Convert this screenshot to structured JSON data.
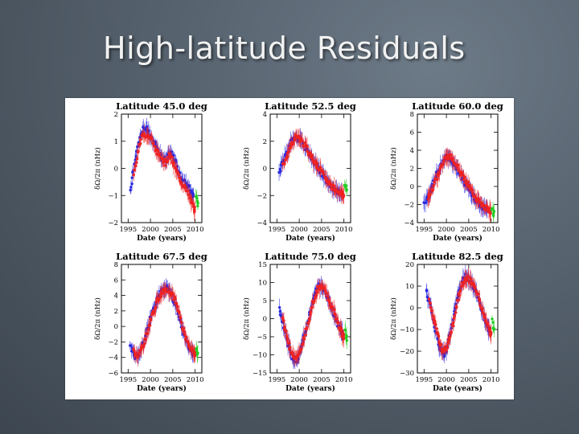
{
  "slide": {
    "title": "High-latitude Residuals"
  },
  "colors": {
    "series_blue": "#2a2ae0",
    "series_red": "#ee2222",
    "series_green": "#22cc22",
    "axis": "#000000"
  },
  "chart_data": [
    {
      "type": "scatter",
      "title": "Latitude   45.0 deg",
      "xlabel": "Date (years)",
      "ylabel": "δΩ/2π (nHz)",
      "xlim": [
        1993.5,
        2011.5
      ],
      "ylim": [
        -2,
        2
      ],
      "xticks": [
        1995,
        2000,
        2005,
        2010
      ],
      "yticks": [
        -2,
        -1,
        0,
        1,
        2
      ],
      "yticklabels": [
        "−2",
        "−1",
        "0",
        "1",
        "2"
      ],
      "grid": false,
      "series": [
        {
          "color": "blue",
          "x": [
            1995.5,
            1996.5,
            1997.5,
            1998.5,
            1999.5,
            2000.5,
            2001.5,
            2002.5,
            2003.5,
            2004.5,
            2005.5,
            2006.5,
            2007.5,
            2008.5,
            2009.5
          ],
          "y": [
            -0.8,
            0.3,
            1.0,
            1.5,
            1.4,
            1.0,
            0.8,
            0.4,
            0.3,
            0.6,
            0.3,
            -0.2,
            -0.5,
            -0.7,
            -1.0
          ]
        },
        {
          "color": "red",
          "x": [
            1996.3,
            1997.3,
            1998.3,
            1999.3,
            2000.3,
            2001.3,
            2002.3,
            2003.3,
            2004.3,
            2005.3,
            2006.3,
            2007.3,
            2008.3,
            2009.3,
            2009.9
          ],
          "y": [
            -0.2,
            0.7,
            1.3,
            1.2,
            1.1,
            0.6,
            0.5,
            0.2,
            0.5,
            0.1,
            -0.3,
            -0.6,
            -0.9,
            -1.3,
            -1.5
          ]
        },
        {
          "color": "green",
          "x": [
            2010.2,
            2010.6
          ],
          "y": [
            -1.0,
            -1.3
          ]
        }
      ]
    },
    {
      "type": "scatter",
      "title": "Latitude   52.5 deg",
      "xlabel": "Date (years)",
      "ylabel": "δΩ/2π (nHz)",
      "xlim": [
        1993.5,
        2011.5
      ],
      "ylim": [
        -4,
        4
      ],
      "xticks": [
        1995,
        2000,
        2005,
        2010
      ],
      "yticks": [
        -4,
        -2,
        0,
        2,
        4
      ],
      "yticklabels": [
        "−4",
        "−2",
        "0",
        "2",
        "4"
      ],
      "grid": false,
      "series": [
        {
          "color": "blue",
          "x": [
            1995.5,
            1996.5,
            1997.5,
            1998.5,
            1999.5,
            2000.5,
            2001.5,
            2002.5,
            2003.5,
            2004.5,
            2005.5,
            2006.5,
            2007.5,
            2008.5,
            2009.5
          ],
          "y": [
            -0.3,
            0.6,
            1.4,
            2.1,
            2.3,
            2.0,
            1.5,
            0.9,
            0.4,
            -0.1,
            -0.6,
            -1.1,
            -1.4,
            -1.7,
            -1.9
          ]
        },
        {
          "color": "red",
          "x": [
            1996.3,
            1997.3,
            1998.3,
            1999.3,
            2000.3,
            2001.3,
            2002.3,
            2003.3,
            2004.3,
            2005.3,
            2006.3,
            2007.3,
            2008.3,
            2009.3,
            2009.9
          ],
          "y": [
            0.2,
            1.0,
            1.8,
            2.4,
            2.1,
            1.7,
            1.1,
            0.6,
            0.1,
            -0.4,
            -0.9,
            -1.3,
            -1.6,
            -1.8,
            -2.0
          ]
        },
        {
          "color": "green",
          "x": [
            2010.2,
            2010.6
          ],
          "y": [
            -1.2,
            -1.6
          ]
        }
      ]
    },
    {
      "type": "scatter",
      "title": "Latitude   60.0 deg",
      "xlabel": "Date (years)",
      "ylabel": "δΩ/2π (nHz)",
      "xlim": [
        1993.5,
        2011.5
      ],
      "ylim": [
        -4,
        8
      ],
      "xticks": [
        1995,
        2000,
        2005,
        2010
      ],
      "yticks": [
        -4,
        -2,
        0,
        2,
        4,
        6,
        8
      ],
      "yticklabels": [
        "−4",
        "−2",
        "0",
        "2",
        "4",
        "6",
        "8"
      ],
      "grid": false,
      "series": [
        {
          "color": "blue",
          "x": [
            1995.0,
            1996.0,
            1997.0,
            1998.0,
            1999.0,
            2000.0,
            2001.0,
            2002.0,
            2003.0,
            2004.0,
            2005.0,
            2006.0,
            2007.0,
            2008.0,
            2009.0
          ],
          "y": [
            -1.8,
            -1.0,
            0.2,
            1.5,
            2.6,
            3.3,
            3.0,
            2.3,
            1.4,
            0.6,
            -0.3,
            -1.1,
            -1.8,
            -2.2,
            -2.5
          ]
        },
        {
          "color": "red",
          "x": [
            1995.8,
            1996.8,
            1997.8,
            1998.8,
            1999.8,
            2000.8,
            2001.8,
            2002.8,
            2003.8,
            2004.8,
            2005.8,
            2006.8,
            2007.8,
            2008.8,
            2009.8
          ],
          "y": [
            -1.3,
            -0.3,
            0.9,
            2.1,
            3.1,
            3.4,
            2.8,
            2.0,
            1.1,
            0.2,
            -0.6,
            -1.4,
            -2.0,
            -2.4,
            -2.7
          ]
        },
        {
          "color": "green",
          "x": [
            2010.2,
            2010.6
          ],
          "y": [
            -2.5,
            -3.0
          ]
        }
      ]
    },
    {
      "type": "scatter",
      "title": "Latitude   67.5 deg",
      "xlabel": "Date (years)",
      "ylabel": "δΩ/2π (nHz)",
      "xlim": [
        1993.5,
        2011.5
      ],
      "ylim": [
        -6,
        8
      ],
      "xticks": [
        1995,
        2000,
        2005,
        2010
      ],
      "yticks": [
        -6,
        -4,
        -2,
        0,
        2,
        4,
        6,
        8
      ],
      "yticklabels": [
        "−6",
        "−4",
        "−2",
        "0",
        "2",
        "4",
        "6",
        "8"
      ],
      "grid": false,
      "series": [
        {
          "color": "blue",
          "x": [
            1995.5,
            1996.5,
            1997.5,
            1998.5,
            1999.5,
            2000.5,
            2001.5,
            2002.5,
            2003.5,
            2004.5,
            2005.5,
            2006.5,
            2007.5,
            2008.5,
            2009.5
          ],
          "y": [
            -2.5,
            -4.0,
            -3.5,
            -2.0,
            0.0,
            2.0,
            3.5,
            4.5,
            5.0,
            4.5,
            3.0,
            1.0,
            -1.0,
            -2.5,
            -3.5
          ]
        },
        {
          "color": "red",
          "x": [
            1996.2,
            1997.2,
            1998.2,
            1999.2,
            2000.2,
            2001.2,
            2002.2,
            2003.2,
            2004.2,
            2005.2,
            2006.2,
            2007.2,
            2008.2,
            2009.2,
            2009.9
          ],
          "y": [
            -3.2,
            -3.8,
            -2.7,
            -1.0,
            1.0,
            2.8,
            4.0,
            4.8,
            4.7,
            3.8,
            2.2,
            0.0,
            -1.8,
            -3.0,
            -3.6
          ]
        },
        {
          "color": "green",
          "x": [
            2010.2,
            2010.6
          ],
          "y": [
            -2.8,
            -3.5
          ]
        }
      ]
    },
    {
      "type": "scatter",
      "title": "Latitude   75.0 deg",
      "xlabel": "Date (years)",
      "ylabel": "δΩ/2π (nHz)",
      "xlim": [
        1993.5,
        2011.5
      ],
      "ylim": [
        -15,
        15
      ],
      "xticks": [
        1995,
        2000,
        2005,
        2010
      ],
      "yticks": [
        -15,
        -10,
        -5,
        0,
        5,
        10,
        15
      ],
      "yticklabels": [
        "−15",
        "−10",
        "−5",
        "0",
        "5",
        "10",
        "15"
      ],
      "grid": false,
      "series": [
        {
          "color": "blue",
          "x": [
            1995.5,
            1996.5,
            1997.5,
            1998.5,
            1999.5,
            2000.5,
            2001.5,
            2002.5,
            2003.5,
            2004.5,
            2005.5,
            2006.5,
            2007.5,
            2008.5,
            2009.5
          ],
          "y": [
            3.0,
            -2.0,
            -7.0,
            -11.0,
            -11.5,
            -8.0,
            -3.0,
            2.0,
            7.0,
            9.5,
            8.0,
            5.5,
            2.0,
            -1.0,
            -4.0
          ]
        },
        {
          "color": "red",
          "x": [
            1996.2,
            1997.2,
            1998.2,
            1999.2,
            2000.2,
            2001.2,
            2002.2,
            2003.2,
            2004.2,
            2005.2,
            2006.2,
            2007.2,
            2008.2,
            2009.2,
            2009.9
          ],
          "y": [
            0.5,
            -4.5,
            -9.0,
            -11.0,
            -9.5,
            -5.0,
            0.0,
            5.0,
            8.5,
            9.0,
            6.5,
            3.5,
            0.5,
            -3.0,
            -5.0
          ]
        },
        {
          "color": "green",
          "x": [
            2010.2,
            2010.6
          ],
          "y": [
            -3.0,
            -5.5
          ]
        }
      ]
    },
    {
      "type": "scatter",
      "title": "Latitude   82.5 deg",
      "xlabel": "Date (years)",
      "ylabel": "δΩ/2π (nHz)",
      "xlim": [
        1993.5,
        2011.5
      ],
      "ylim": [
        -30,
        20
      ],
      "xticks": [
        1995,
        2000,
        2005,
        2010
      ],
      "yticks": [
        -30,
        -20,
        -10,
        0,
        10,
        20
      ],
      "yticklabels": [
        "−30",
        "−20",
        "−10",
        "0",
        "10",
        "20"
      ],
      "grid": false,
      "series": [
        {
          "color": "blue",
          "x": [
            1995.5,
            1996.5,
            1997.5,
            1998.5,
            1999.5,
            2000.5,
            2001.5,
            2002.5,
            2003.5,
            2004.5,
            2005.5,
            2006.5,
            2007.5,
            2008.5,
            2009.5
          ],
          "y": [
            8.0,
            0.0,
            -10.0,
            -18.0,
            -22.0,
            -15.0,
            -5.0,
            5.0,
            12.0,
            15.0,
            12.0,
            8.0,
            2.0,
            -5.0,
            -10.0
          ]
        },
        {
          "color": "red",
          "x": [
            1996.2,
            1997.2,
            1998.2,
            1999.2,
            2000.2,
            2001.2,
            2002.2,
            2003.2,
            2004.2,
            2005.2,
            2006.2,
            2007.2,
            2008.2,
            2009.2,
            2009.9
          ],
          "y": [
            3.0,
            -5.0,
            -14.0,
            -20.0,
            -18.0,
            -10.0,
            0.0,
            9.0,
            14.0,
            13.0,
            10.0,
            5.0,
            -2.0,
            -8.0,
            -12.0
          ]
        },
        {
          "color": "green",
          "x": [
            2010.2,
            2010.6
          ],
          "y": [
            -5.0,
            -10.0
          ]
        }
      ]
    }
  ]
}
